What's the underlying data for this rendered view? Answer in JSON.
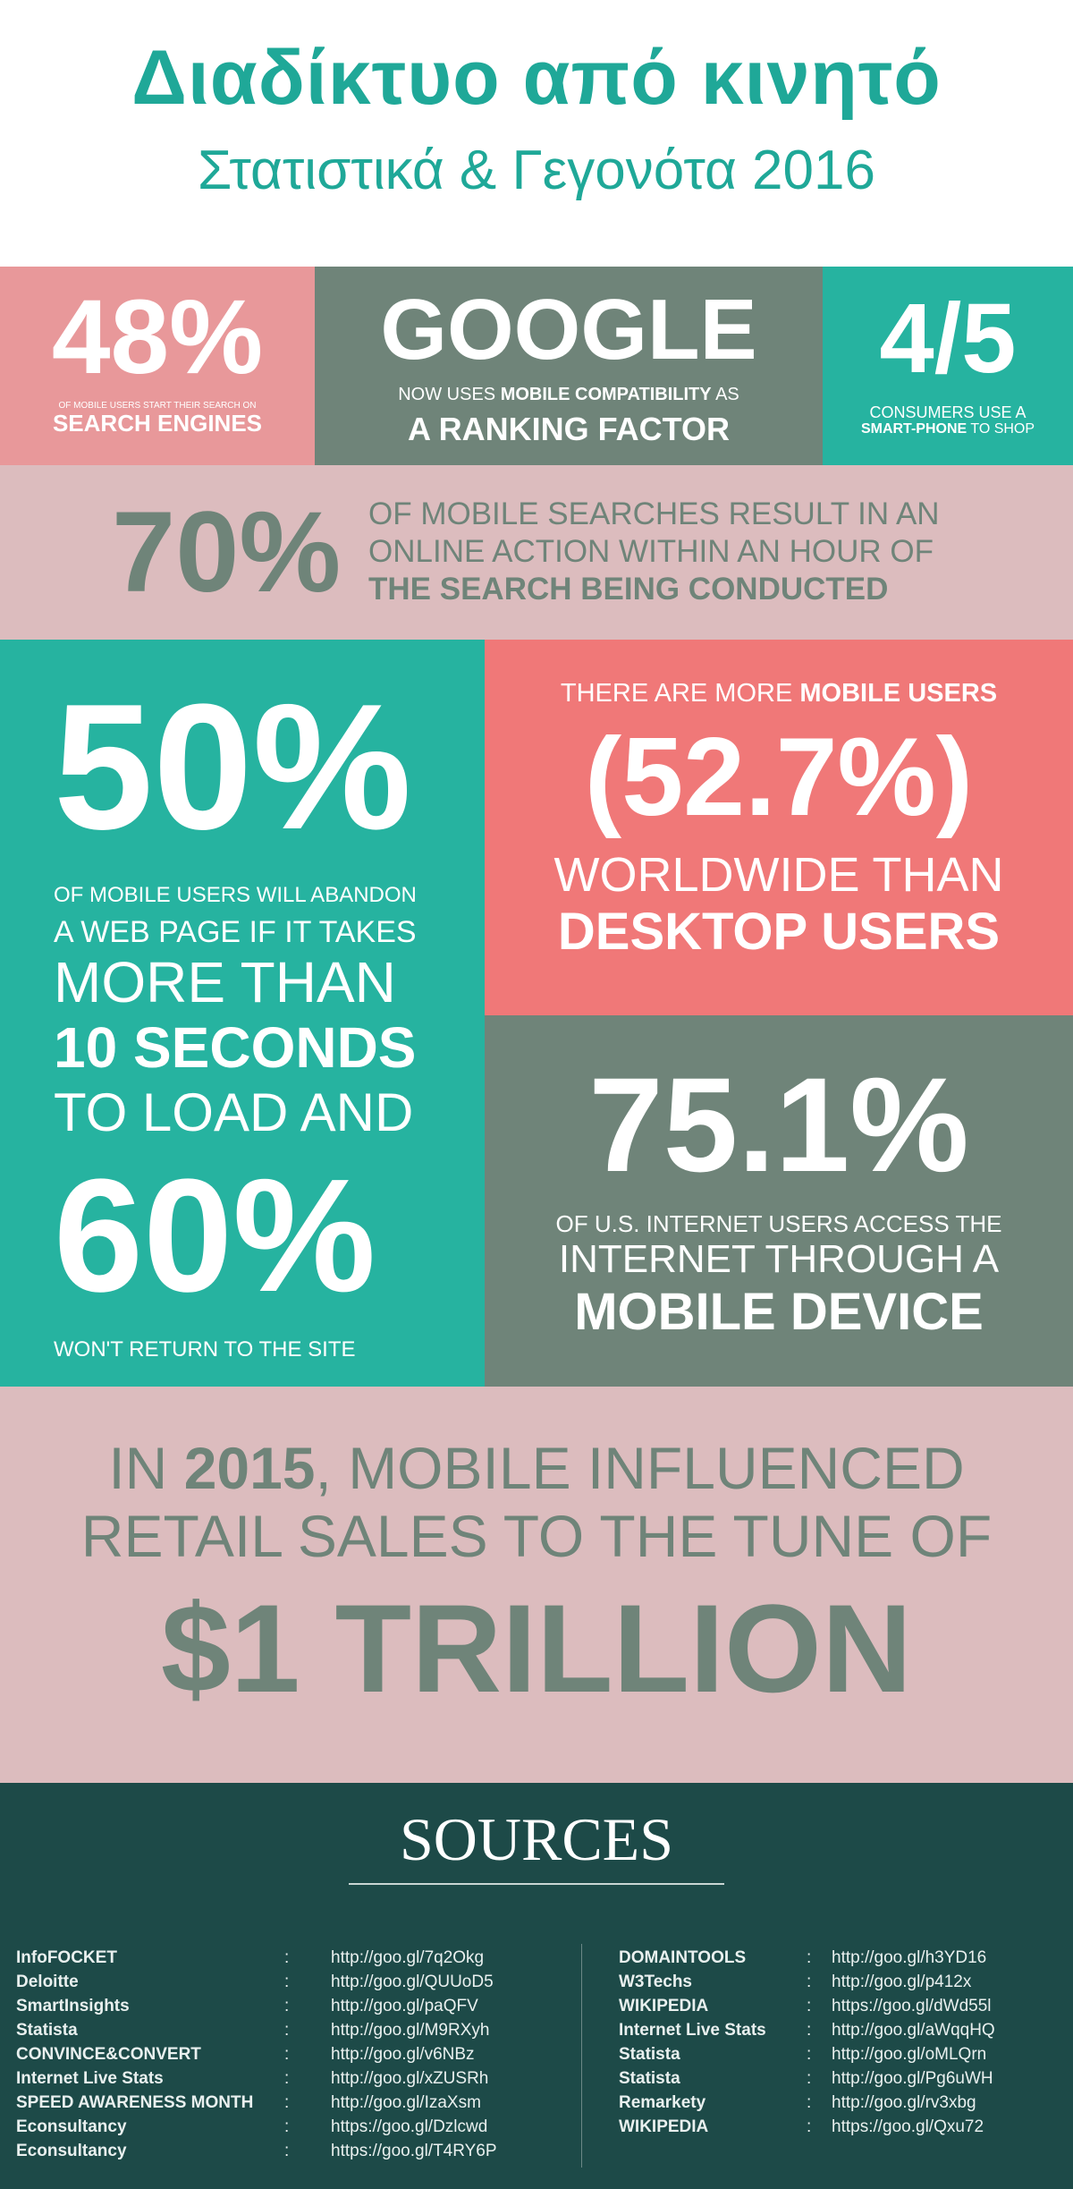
{
  "header": {
    "title": "Διαδίκτυο από κινητό",
    "subtitle": "Στατιστικά & Γεγονότα 2016"
  },
  "colors": {
    "pink": "#e8989a",
    "grey": "#6f8479",
    "teal": "#26b3a0",
    "light_pink": "#dcbcbe",
    "coral": "#f07878",
    "dark_green": "#1d4a48"
  },
  "stats": {
    "s48": {
      "value": "48%",
      "line1": "OF MOBILE USERS START THEIR SEARCH ON",
      "line2": "SEARCH ENGINES"
    },
    "google": {
      "value": "GOOGLE",
      "pre": "NOW USES ",
      "bold": "MOBILE COMPATIBILITY",
      "post": " AS",
      "line2": "A RANKING FACTOR"
    },
    "s45": {
      "value": "4/5",
      "line1": "CONSUMERS USE A",
      "bold": "SMART-PHONE",
      "post": " TO SHOP"
    },
    "s70": {
      "value": "70%",
      "line1": "OF MOBILE SEARCHES RESULT IN AN",
      "line2": "ONLINE ACTION WITHIN AN HOUR OF",
      "line3": "THE SEARCH BEING CONDUCTED"
    },
    "s50": {
      "value": "50%",
      "line1": "OF MOBILE USERS WILL ABANDON",
      "line2": "A WEB PAGE IF IT TAKES",
      "line3": "MORE THAN",
      "line4": "10 SECONDS",
      "line5": "TO LOAD AND",
      "value2": "60%",
      "line6": "WON'T RETURN TO THE SITE"
    },
    "s527": {
      "pre": "THERE ARE MORE ",
      "bold": "MOBILE USERS",
      "value": "(52.7%)",
      "line2": "WORLDWIDE THAN",
      "line3": "DESKTOP USERS"
    },
    "s751": {
      "value": "75.1%",
      "line1": "OF U.S. INTERNET USERS ACCESS THE",
      "line2": "INTERNET THROUGH A",
      "line3": "MOBILE DEVICE"
    },
    "trillion": {
      "pre": "IN ",
      "year": "2015",
      "post": ", MOBILE INFLUENCED",
      "line2": "RETAIL SALES TO THE TUNE OF",
      "value": "$1 TRILLION"
    }
  },
  "sources": {
    "title": "SOURCES",
    "sep": ":",
    "left": [
      {
        "name": "InfoFOCKET",
        "url": "http://goo.gl/7q2Okg"
      },
      {
        "name": "Deloitte",
        "url": "http://goo.gl/QUUoD5"
      },
      {
        "name": "SmartInsights",
        "url": "http://goo.gl/paQFV"
      },
      {
        "name": "Statista",
        "url": "http://goo.gl/M9RXyh"
      },
      {
        "name": "CONVINCE&CONVERT",
        "url": "http://goo.gl/v6NBz"
      },
      {
        "name": "Internet Live Stats",
        "url": "http://goo.gl/xZUSRh"
      },
      {
        "name": "SPEED AWARENESS MONTH",
        "url": "http://goo.gl/IzaXsm"
      },
      {
        "name": "Econsultancy",
        "url": "https://goo.gl/Dzlcwd"
      },
      {
        "name": "Econsultancy",
        "url": "https://goo.gl/T4RY6P"
      }
    ],
    "right": [
      {
        "name": "DOMAINTOOLS",
        "url": "http://goo.gl/h3YD16"
      },
      {
        "name": "W3Techs",
        "url": "http://goo.gl/p412x"
      },
      {
        "name": "WIKIPEDIA",
        "url": "https://goo.gl/dWd55l"
      },
      {
        "name": "Internet Live Stats",
        "url": "http://goo.gl/aWqqHQ"
      },
      {
        "name": "Statista",
        "url": "http://goo.gl/oMLQrn"
      },
      {
        "name": "Statista",
        "url": "http://goo.gl/Pg6uWH"
      },
      {
        "name": "Remarkety",
        "url": "http://goo.gl/rv3xbg"
      },
      {
        "name": "WIKIPEDIA",
        "url": "https://goo.gl/Qxu72"
      }
    ]
  }
}
